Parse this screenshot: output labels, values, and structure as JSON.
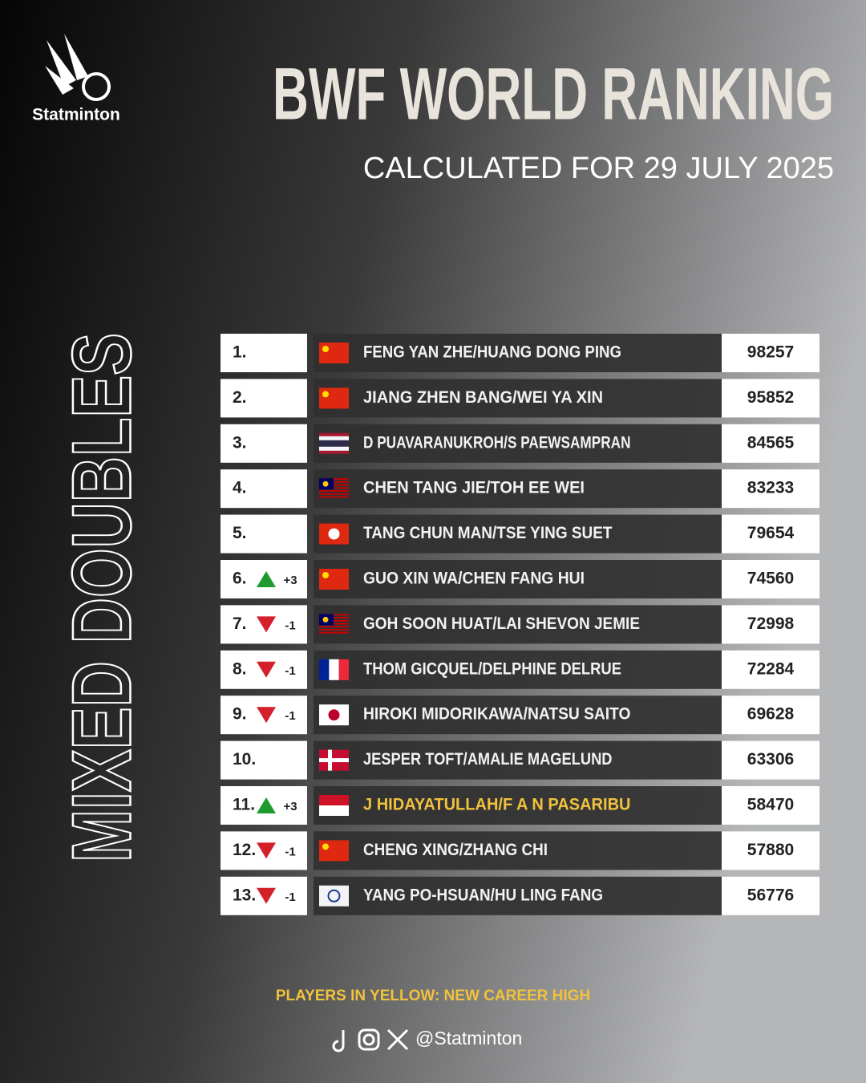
{
  "brand": "Statminton",
  "header": {
    "title": "BWF WORLD RANKING",
    "subtitle": "CALCULATED FOR 29 JULY 2025"
  },
  "side_label": "MIXED DOUBLES",
  "table": {
    "rows": [
      {
        "rank": "1.",
        "flag": "CN",
        "name": "FENG YAN ZHE/HUANG DONG PING",
        "points": 98257
      },
      {
        "rank": "2.",
        "flag": "CN",
        "name": "JIANG ZHEN BANG/WEI YA XIN",
        "points": 95852
      },
      {
        "rank": "3.",
        "flag": "TH",
        "name": "D PUAVARANUKROH/S PAEWSAMPRAN",
        "points": 84565
      },
      {
        "rank": "4.",
        "flag": "MY",
        "name": "CHEN TANG JIE/TOH EE WEI",
        "points": 83233
      },
      {
        "rank": "5.",
        "flag": "HK",
        "name": "TANG CHUN MAN/TSE YING SUET",
        "points": 79654
      },
      {
        "rank": "6.",
        "change": "+3",
        "direction": "up",
        "flag": "CN",
        "name": "GUO XIN WA/CHEN FANG HUI",
        "points": 74560
      },
      {
        "rank": "7.",
        "change": "-1",
        "direction": "down",
        "flag": "MY",
        "name": "GOH SOON HUAT/LAI SHEVON JEMIE",
        "points": 72998
      },
      {
        "rank": "8.",
        "change": "-1",
        "direction": "down",
        "flag": "FR",
        "name": "THOM GICQUEL/DELPHINE DELRUE",
        "points": 72284
      },
      {
        "rank": "9.",
        "change": "-1",
        "direction": "down",
        "flag": "JP",
        "name": "HIROKI MIDORIKAWA/NATSU SAITO",
        "points": 69628
      },
      {
        "rank": "10.",
        "flag": "DK",
        "name": "JESPER TOFT/AMALIE MAGELUND",
        "points": 63306
      },
      {
        "rank": "11.",
        "change": "+3",
        "direction": "up",
        "flag": "ID",
        "name": "J HIDAYATULLAH/F A N PASARIBU",
        "points": 58470,
        "highlight": true
      },
      {
        "rank": "12.",
        "change": "-1",
        "direction": "down",
        "flag": "CN",
        "name": "CHENG XING/ZHANG CHI",
        "points": 57880
      },
      {
        "rank": "13.",
        "change": "-1",
        "direction": "down",
        "flag": "TPE",
        "name": "YANG PO-HSUAN/HU LING FANG",
        "points": 56776
      }
    ]
  },
  "footer": {
    "note": "PLAYERS IN YELLOW: NEW CAREER HIGH",
    "handle": "@Statminton"
  }
}
